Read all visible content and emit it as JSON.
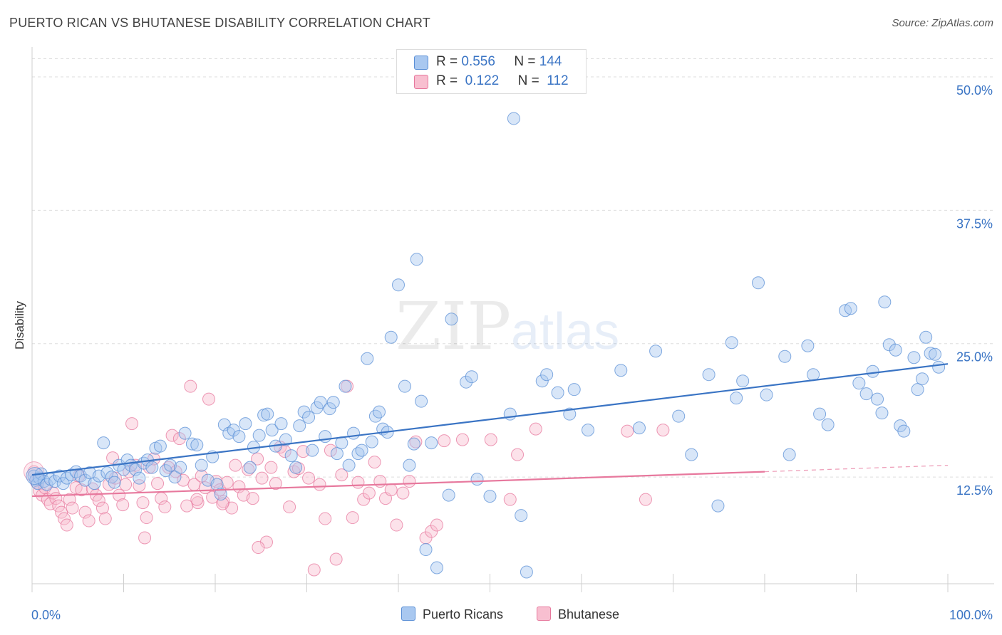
{
  "header": {
    "title": "PUERTO RICAN VS BHUTANESE DISABILITY CORRELATION CHART",
    "source": "Source: ZipAtlas.com"
  },
  "watermark": {
    "part1": "ZIP",
    "part2": "atlas"
  },
  "legend": {
    "rows": [
      {
        "r_label": "R =",
        "r_value": "0.556",
        "n_label": "N =",
        "n_value": "144",
        "color": "#a9c8f0",
        "border": "#5a8fd6"
      },
      {
        "r_label": "R =",
        "r_value": "0.122",
        "n_label": "N =",
        "n_value": "112",
        "color": "#f8bfd0",
        "border": "#e7789d"
      }
    ],
    "bottom": [
      {
        "label": "Puerto Ricans",
        "color": "#a9c8f0",
        "border": "#5a8fd6"
      },
      {
        "label": "Bhutanese",
        "color": "#f8bfd0",
        "border": "#e7789d"
      }
    ]
  },
  "colors": {
    "blue": "#3a74c4",
    "blue_fill": "#a9c8f0",
    "pink": "#e7789d",
    "pink_fill": "#f8bfd0",
    "grid": "#dddddd"
  },
  "chart_data": {
    "type": "scatter",
    "title": "PUERTO RICAN VS BHUTANESE DISABILITY CORRELATION CHART",
    "xlabel": "",
    "ylabel": "Disability",
    "xlim": [
      0,
      100
    ],
    "ylim": [
      2.5,
      52
    ],
    "x_tick_labels": [
      "0.0%",
      "100.0%"
    ],
    "y_ticks": [
      12.5,
      25.0,
      37.5,
      50.0
    ],
    "y_tick_labels": [
      "12.5%",
      "25.0%",
      "37.5%",
      "50.0%"
    ],
    "grid": "horizontal dashed",
    "legend_position": "top-center",
    "series": [
      {
        "name": "Puerto Ricans",
        "r": 0.556,
        "n": 144,
        "trend": {
          "x": [
            0,
            100
          ],
          "y": [
            12.7,
            23.1
          ]
        },
        "points": [
          [
            0.2,
            12.6
          ],
          [
            0.4,
            12.2
          ],
          [
            0.6,
            11.9
          ],
          [
            0.8,
            12.4
          ],
          [
            1.0,
            12.8
          ],
          [
            1.3,
            12.1
          ],
          [
            1.6,
            11.8
          ],
          [
            2.0,
            12.3
          ],
          [
            2.5,
            12.1
          ],
          [
            3.0,
            12.6
          ],
          [
            3.4,
            11.9
          ],
          [
            3.8,
            12.4
          ],
          [
            4.3,
            12.7
          ],
          [
            4.8,
            13.0
          ],
          [
            5.3,
            12.6
          ],
          [
            5.8,
            12.2
          ],
          [
            6.3,
            12.9
          ],
          [
            6.8,
            11.9
          ],
          [
            7.3,
            12.6
          ],
          [
            7.8,
            15.7
          ],
          [
            8.2,
            12.9
          ],
          [
            8.7,
            12.5
          ],
          [
            9.0,
            12.0
          ],
          [
            9.5,
            13.6
          ],
          [
            10.0,
            13.2
          ],
          [
            10.4,
            14.1
          ],
          [
            10.8,
            13.6
          ],
          [
            11.3,
            13.2
          ],
          [
            11.7,
            12.4
          ],
          [
            12.2,
            13.8
          ],
          [
            12.6,
            14.1
          ],
          [
            13.1,
            13.4
          ],
          [
            13.5,
            15.2
          ],
          [
            14.0,
            15.4
          ],
          [
            14.6,
            13.1
          ],
          [
            15.1,
            13.6
          ],
          [
            15.6,
            12.5
          ],
          [
            16.2,
            13.4
          ],
          [
            16.7,
            16.6
          ],
          [
            17.5,
            15.6
          ],
          [
            18.0,
            15.5
          ],
          [
            18.5,
            13.6
          ],
          [
            19.2,
            12.2
          ],
          [
            19.7,
            14.4
          ],
          [
            20.2,
            11.8
          ],
          [
            20.6,
            10.9
          ],
          [
            21.0,
            17.4
          ],
          [
            21.5,
            16.6
          ],
          [
            22.0,
            16.9
          ],
          [
            22.6,
            16.3
          ],
          [
            23.3,
            17.5
          ],
          [
            23.8,
            13.4
          ],
          [
            24.2,
            15.3
          ],
          [
            24.8,
            16.4
          ],
          [
            25.3,
            18.3
          ],
          [
            25.7,
            18.4
          ],
          [
            26.2,
            16.9
          ],
          [
            26.6,
            15.4
          ],
          [
            27.2,
            17.5
          ],
          [
            27.7,
            16.0
          ],
          [
            28.3,
            14.5
          ],
          [
            28.8,
            13.4
          ],
          [
            29.2,
            17.3
          ],
          [
            29.7,
            18.6
          ],
          [
            30.2,
            18.1
          ],
          [
            30.6,
            15.0
          ],
          [
            31.1,
            19.0
          ],
          [
            31.5,
            19.5
          ],
          [
            32.0,
            16.3
          ],
          [
            32.5,
            18.9
          ],
          [
            32.9,
            19.5
          ],
          [
            33.3,
            14.7
          ],
          [
            33.8,
            15.7
          ],
          [
            34.2,
            21.0
          ],
          [
            34.6,
            13.6
          ],
          [
            35.1,
            16.6
          ],
          [
            35.6,
            14.7
          ],
          [
            36.0,
            15.0
          ],
          [
            36.6,
            23.6
          ],
          [
            37.1,
            15.8
          ],
          [
            37.5,
            18.2
          ],
          [
            37.9,
            18.6
          ],
          [
            38.3,
            17.0
          ],
          [
            38.8,
            16.7
          ],
          [
            39.2,
            25.6
          ],
          [
            40.0,
            30.5
          ],
          [
            40.7,
            21.0
          ],
          [
            41.2,
            13.6
          ],
          [
            41.7,
            15.6
          ],
          [
            42.0,
            32.9
          ],
          [
            42.5,
            19.6
          ],
          [
            43.0,
            5.7
          ],
          [
            43.6,
            15.7
          ],
          [
            44.2,
            4.0
          ],
          [
            45.5,
            10.8
          ],
          [
            45.8,
            27.3
          ],
          [
            47.4,
            21.4
          ],
          [
            48.0,
            21.9
          ],
          [
            48.6,
            12.3
          ],
          [
            50.0,
            10.7
          ],
          [
            52.2,
            18.4
          ],
          [
            52.6,
            46.1
          ],
          [
            53.4,
            8.9
          ],
          [
            54.0,
            3.6
          ],
          [
            55.7,
            21.5
          ],
          [
            56.2,
            22.1
          ],
          [
            57.4,
            20.4
          ],
          [
            58.7,
            18.4
          ],
          [
            59.2,
            20.7
          ],
          [
            60.7,
            16.9
          ],
          [
            64.3,
            22.5
          ],
          [
            66.3,
            17.1
          ],
          [
            68.1,
            24.3
          ],
          [
            70.6,
            18.2
          ],
          [
            72.0,
            14.6
          ],
          [
            73.9,
            22.1
          ],
          [
            74.9,
            9.8
          ],
          [
            76.4,
            25.1
          ],
          [
            76.9,
            19.9
          ],
          [
            77.6,
            21.5
          ],
          [
            79.3,
            30.7
          ],
          [
            80.2,
            20.2
          ],
          [
            82.2,
            23.8
          ],
          [
            82.7,
            14.6
          ],
          [
            84.7,
            24.8
          ],
          [
            85.3,
            22.1
          ],
          [
            86.0,
            18.4
          ],
          [
            86.9,
            17.4
          ],
          [
            88.8,
            28.1
          ],
          [
            89.4,
            28.3
          ],
          [
            90.3,
            21.3
          ],
          [
            91.1,
            20.3
          ],
          [
            91.8,
            22.4
          ],
          [
            92.3,
            19.8
          ],
          [
            92.8,
            18.5
          ],
          [
            93.1,
            28.9
          ],
          [
            93.6,
            24.9
          ],
          [
            94.3,
            24.4
          ],
          [
            94.8,
            17.3
          ],
          [
            95.2,
            16.8
          ],
          [
            96.3,
            23.7
          ],
          [
            96.7,
            20.7
          ],
          [
            97.2,
            21.7
          ],
          [
            97.6,
            25.6
          ],
          [
            98.1,
            24.1
          ],
          [
            98.6,
            24.0
          ],
          [
            99.0,
            22.8
          ]
        ]
      },
      {
        "name": "Bhutanese",
        "r": 0.122,
        "n": 112,
        "trend": {
          "x": [
            0,
            80
          ],
          "y": [
            10.7,
            13.0
          ]
        },
        "trend_dashed": {
          "x": [
            80,
            100
          ],
          "y": [
            13.0,
            13.6
          ]
        },
        "points": [
          [
            0.2,
            13.0
          ],
          [
            0.5,
            12.0
          ],
          [
            0.8,
            11.2
          ],
          [
            1.1,
            10.8
          ],
          [
            1.4,
            11.5
          ],
          [
            1.7,
            10.4
          ],
          [
            2.0,
            10.0
          ],
          [
            2.3,
            11.0
          ],
          [
            2.6,
            10.5
          ],
          [
            2.9,
            9.8
          ],
          [
            3.2,
            9.2
          ],
          [
            3.5,
            8.6
          ],
          [
            3.8,
            8.0
          ],
          [
            4.1,
            10.4
          ],
          [
            4.4,
            9.6
          ],
          [
            4.8,
            11.5
          ],
          [
            5.1,
            12.6
          ],
          [
            5.4,
            11.3
          ],
          [
            5.8,
            9.2
          ],
          [
            6.2,
            8.4
          ],
          [
            6.6,
            11.4
          ],
          [
            7.0,
            10.8
          ],
          [
            7.3,
            10.3
          ],
          [
            7.7,
            9.6
          ],
          [
            8.0,
            8.6
          ],
          [
            8.4,
            11.8
          ],
          [
            8.8,
            14.3
          ],
          [
            9.1,
            12.4
          ],
          [
            9.5,
            10.8
          ],
          [
            9.9,
            9.9
          ],
          [
            10.2,
            11.8
          ],
          [
            10.6,
            13.0
          ],
          [
            10.9,
            17.5
          ],
          [
            11.3,
            13.6
          ],
          [
            11.7,
            11.7
          ],
          [
            12.1,
            10.1
          ],
          [
            12.5,
            8.7
          ],
          [
            12.8,
            13.4
          ],
          [
            13.3,
            14.2
          ],
          [
            13.7,
            11.9
          ],
          [
            14.1,
            10.5
          ],
          [
            14.5,
            9.7
          ],
          [
            14.9,
            13.4
          ],
          [
            15.3,
            16.4
          ],
          [
            15.7,
            13.0
          ],
          [
            16.1,
            16.1
          ],
          [
            16.5,
            12.2
          ],
          [
            16.9,
            9.8
          ],
          [
            17.3,
            21.0
          ],
          [
            17.7,
            11.8
          ],
          [
            18.1,
            10.1
          ],
          [
            18.5,
            12.6
          ],
          [
            18.9,
            11.5
          ],
          [
            19.3,
            19.8
          ],
          [
            19.7,
            10.6
          ],
          [
            20.1,
            12.1
          ],
          [
            20.5,
            11.3
          ],
          [
            20.9,
            10.2
          ],
          [
            21.3,
            12.0
          ],
          [
            21.8,
            9.6
          ],
          [
            22.2,
            13.6
          ],
          [
            22.6,
            11.6
          ],
          [
            23.1,
            10.8
          ],
          [
            23.6,
            13.2
          ],
          [
            24.1,
            10.5
          ],
          [
            24.6,
            14.2
          ],
          [
            25.1,
            12.4
          ],
          [
            25.6,
            6.4
          ],
          [
            26.1,
            13.4
          ],
          [
            26.6,
            11.9
          ],
          [
            27.1,
            15.3
          ],
          [
            27.6,
            14.9
          ],
          [
            28.1,
            9.7
          ],
          [
            28.6,
            13.0
          ],
          [
            29.1,
            13.3
          ],
          [
            29.6,
            14.9
          ],
          [
            30.2,
            12.4
          ],
          [
            30.8,
            3.8
          ],
          [
            31.4,
            11.8
          ],
          [
            32.0,
            8.6
          ],
          [
            32.6,
            15.0
          ],
          [
            33.2,
            4.8
          ],
          [
            33.8,
            12.7
          ],
          [
            34.4,
            21.0
          ],
          [
            35.0,
            8.7
          ],
          [
            35.6,
            12.0
          ],
          [
            36.2,
            10.4
          ],
          [
            36.8,
            11.0
          ],
          [
            37.4,
            13.9
          ],
          [
            38.0,
            12.1
          ],
          [
            38.6,
            10.5
          ],
          [
            39.2,
            11.3
          ],
          [
            39.8,
            8.0
          ],
          [
            40.5,
            11.0
          ],
          [
            41.2,
            12.1
          ],
          [
            41.9,
            15.8
          ],
          [
            43.0,
            6.8
          ],
          [
            43.6,
            7.4
          ],
          [
            44.2,
            8.0
          ],
          [
            45.0,
            15.9
          ],
          [
            47.0,
            16.0
          ],
          [
            50.1,
            16.0
          ],
          [
            52.2,
            10.4
          ],
          [
            53.0,
            14.6
          ],
          [
            55.0,
            17.0
          ],
          [
            65.0,
            16.8
          ],
          [
            67.0,
            10.4
          ],
          [
            68.9,
            16.9
          ],
          [
            12.3,
            6.8
          ],
          [
            24.7,
            5.9
          ],
          [
            18.0,
            10.4
          ],
          [
            20.8,
            10.0
          ]
        ]
      }
    ]
  }
}
